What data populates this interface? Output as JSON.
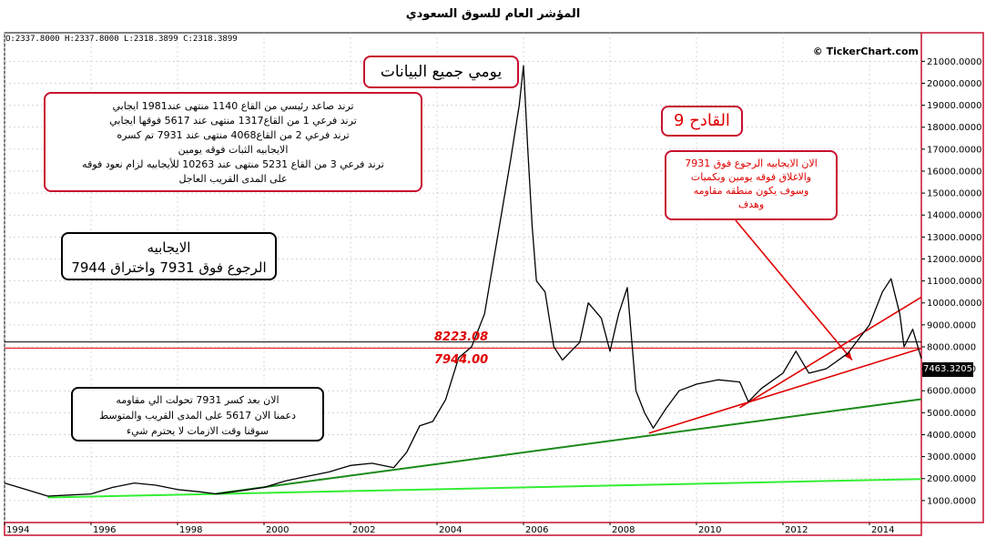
{
  "header": {
    "title": "المؤشر العام للسوق السعودي",
    "ohlc": "O:2337.8000  H:2337.8000  L:2318.3899  C:2318.3899",
    "credit": "© TickerChart.com"
  },
  "annotations": {
    "daily_box": "يومي جميع البيانات",
    "trend_box": [
      "ترند صاعد رئيسي من القاع 1140 منتهى عند1981 ايجابي",
      "ترند فرعي 1 من القاع1317 منتهى عند 5617 فوقها ايجابي",
      "ترند فرعي 2 من القاع4068 منتهى عند 7931 تم كسره",
      "الايجابيه الثبات فوقه يومين",
      "ترند فرعي 3 من القاع 5231 منتهى عند 10263 للأيجابيه لزام نعود فوقه",
      "على المدى القريب العاجل"
    ],
    "positive_box": [
      "الايجابيه",
      "الرجوع فوق 7931 واختراق 7944"
    ],
    "now_box": [
      "الان بعد كسر 7931 تحولت الي مقاومه",
      "دعمنا الان 5617 على المدى القريب والمتوسط",
      "سوقنا وقت الازمات لا يحترم شيء"
    ],
    "qadeh_box": "القادح 9",
    "qadeh_note": [
      "الان الايجابيه الرجوع فوق 7931",
      "والاغلاق فوقه يومين وبكميات",
      "وسوف يكون منطقه مقاومه",
      "وهدف"
    ],
    "level_8223": "8223.08",
    "level_7944": "7944.00",
    "last_price": "7463.3205"
  },
  "colors": {
    "accent_red": "#e00000",
    "trend_green_dark": "#1a8a1a",
    "trend_green_light": "#33ee33",
    "price_line": "#000000"
  },
  "chart_data": {
    "type": "line",
    "title": "المؤشر العام للسوق السعودي",
    "x_ticks": [
      "1994",
      "1996",
      "1998",
      "2000",
      "2002",
      "2004",
      "2006",
      "2008",
      "2010",
      "2012",
      "2014"
    ],
    "y_ticks": [
      "1000.0000",
      "2000.0000",
      "3000.0000",
      "4000.0000",
      "5000.0000",
      "6000.0000",
      "7000.0000",
      "8000.0000",
      "9000.0000",
      "10000.0000",
      "11000.0000",
      "12000.0000",
      "13000.0000",
      "14000.0000",
      "15000.0000",
      "16000.0000",
      "17000.0000",
      "18000.0000",
      "19000.0000",
      "20000.0000",
      "21000.0000"
    ],
    "ylim": [
      0,
      22300
    ],
    "xlim": [
      1994.0,
      2015.2
    ],
    "series": [
      {
        "x": [
          1994.0,
          1994.5,
          1995.0,
          1995.5,
          1996.0,
          1996.5,
          1997.0,
          1997.5,
          1998.0,
          1998.5,
          1998.9,
          1999.5,
          2000.0,
          2000.5,
          2001.0,
          2001.5,
          2002.0,
          2002.5,
          2003.0,
          2003.3,
          2003.6,
          2003.9,
          2004.2,
          2004.5,
          2004.8,
          2005.1,
          2005.4,
          2005.7,
          2005.9,
          2006.0,
          2006.1,
          2006.2,
          2006.3,
          2006.5,
          2006.7,
          2006.9,
          2007.1,
          2007.3,
          2007.5,
          2007.8,
          2008.0,
          2008.2,
          2008.4,
          2008.6,
          2008.8,
          2009.0,
          2009.3,
          2009.6,
          2010.0,
          2010.5,
          2011.0,
          2011.2,
          2011.5,
          2012.0,
          2012.3,
          2012.6,
          2013.0,
          2013.5,
          2014.0,
          2014.3,
          2014.5,
          2014.7,
          2014.8,
          2015.0,
          2015.2
        ],
        "y": [
          1800,
          1500,
          1200,
          1250,
          1300,
          1600,
          1800,
          1700,
          1500,
          1400,
          1300,
          1450,
          1600,
          1900,
          2100,
          2300,
          2600,
          2700,
          2500,
          3200,
          4400,
          4600,
          5600,
          7500,
          8000,
          9500,
          13000,
          16500,
          19000,
          20800,
          17000,
          13500,
          11000,
          10500,
          8000,
          7400,
          7800,
          8200,
          10000,
          9300,
          7800,
          9500,
          10700,
          6000,
          5000,
          4300,
          5200,
          6000,
          6300,
          6500,
          6400,
          5500,
          6100,
          6800,
          7800,
          6800,
          7000,
          7700,
          9000,
          10500,
          11100,
          9500,
          8000,
          8800,
          7463
        ]
      }
    ]
  }
}
